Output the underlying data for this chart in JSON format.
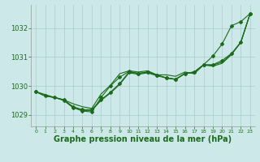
{
  "background_color": "#cce8e8",
  "grid_color": "#aacccc",
  "line_color": "#1a6b1a",
  "xlabel": "Graphe pression niveau de la mer (hPa)",
  "xlabel_fontsize": 7,
  "ylabel_ticks": [
    1029,
    1030,
    1031,
    1032
  ],
  "xlim": [
    -0.5,
    23.5
  ],
  "ylim": [
    1028.6,
    1032.8
  ],
  "x": [
    0,
    1,
    2,
    3,
    4,
    5,
    6,
    7,
    8,
    9,
    10,
    11,
    12,
    13,
    14,
    15,
    16,
    17,
    18,
    19,
    20,
    21,
    22,
    23
  ],
  "series1": [
    1029.8,
    1029.65,
    1029.6,
    1029.5,
    1029.25,
    1029.15,
    1029.15,
    1029.5,
    1029.75,
    1030.05,
    1030.45,
    1030.4,
    1030.45,
    1030.35,
    1030.27,
    1030.22,
    1030.42,
    1030.47,
    1030.72,
    1030.72,
    1030.82,
    1031.1,
    1031.52,
    1032.5
  ],
  "series2": [
    1029.8,
    1029.65,
    1029.6,
    1029.52,
    1029.38,
    1029.28,
    1029.22,
    1029.72,
    1030.02,
    1030.42,
    1030.52,
    1030.48,
    1030.52,
    1030.38,
    1030.38,
    1030.33,
    1030.48,
    1030.42,
    1030.72,
    1030.68,
    1030.78,
    1031.08,
    1031.5,
    1032.5
  ],
  "series3_x": [
    0,
    3,
    4,
    5,
    6,
    7,
    8,
    9,
    10,
    11,
    12,
    13,
    14,
    15,
    16,
    17,
    18,
    19,
    20,
    21,
    22,
    23
  ],
  "series3": [
    1029.8,
    1029.5,
    1029.25,
    1029.13,
    1029.1,
    1029.6,
    1030.0,
    1030.3,
    1030.5,
    1030.43,
    1030.48,
    1030.37,
    1030.28,
    1030.23,
    1030.43,
    1030.48,
    1030.73,
    1031.03,
    1031.45,
    1032.08,
    1032.22,
    1032.5
  ],
  "series4_x": [
    0,
    1,
    2,
    3,
    4,
    5,
    6,
    7,
    8,
    9,
    10,
    11,
    12,
    13,
    14,
    15,
    16,
    17,
    18,
    19,
    20,
    21,
    22,
    23
  ],
  "series4": [
    1029.8,
    1029.65,
    1029.6,
    1029.52,
    1029.28,
    1029.18,
    1029.18,
    1029.52,
    1029.78,
    1030.08,
    1030.48,
    1030.43,
    1030.48,
    1030.37,
    1030.28,
    1030.23,
    1030.43,
    1030.48,
    1030.73,
    1030.73,
    1030.88,
    1031.12,
    1031.5,
    1032.5
  ]
}
